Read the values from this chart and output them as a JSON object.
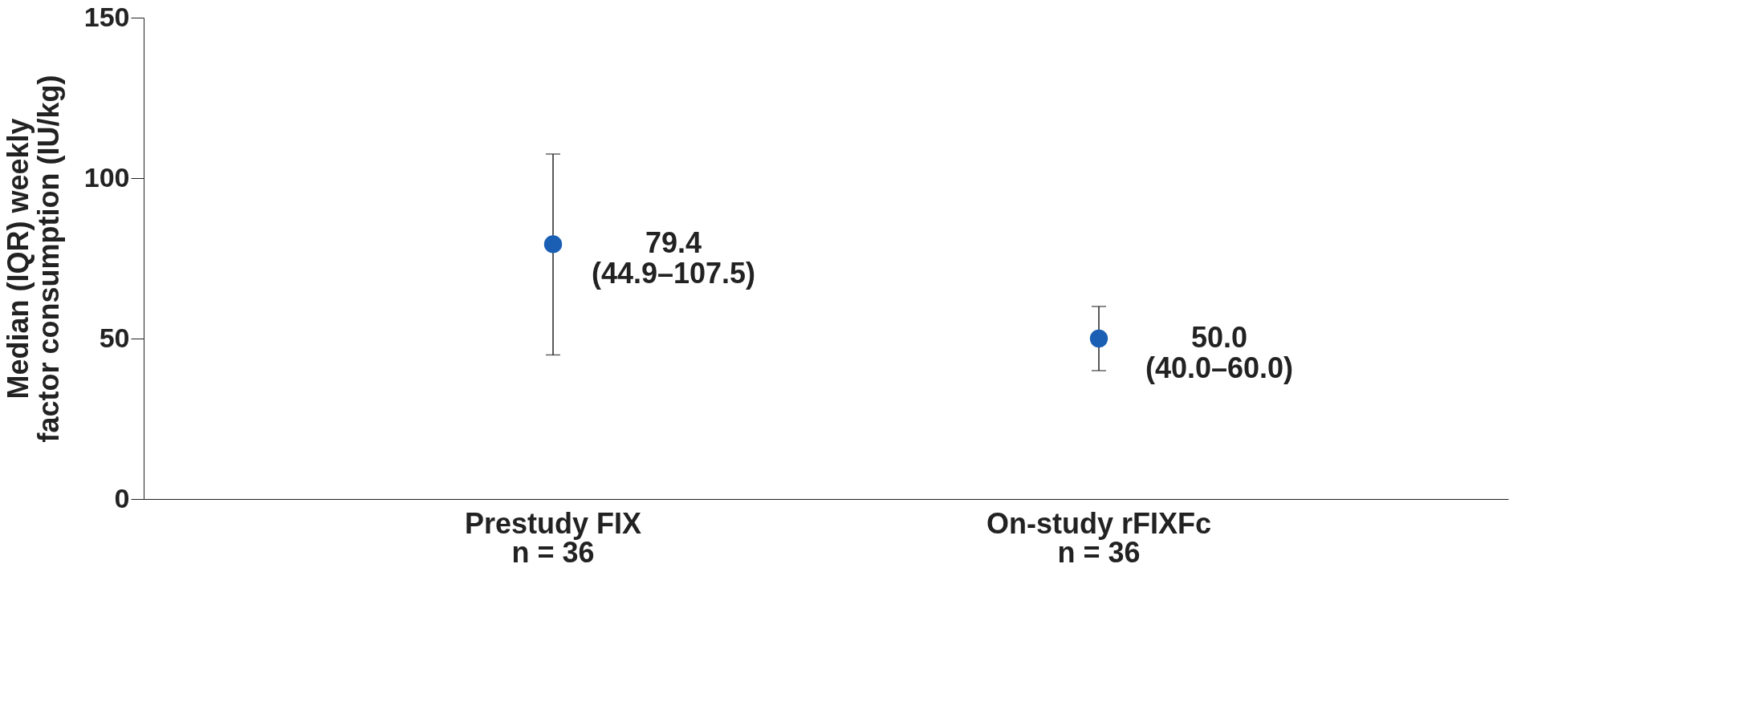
{
  "chart_data": {
    "type": "scatter",
    "ylabel": "Median (IQR) weekly\nfactor consumption (IU/kg)",
    "categories": [
      "Prestudy FIX\nn = 36",
      "On-study rFIXFc\nn = 36"
    ],
    "series": [
      {
        "color": "#1a5fb4",
        "values": [
          79.4,
          50.0
        ],
        "errors": [
          [
            44.9,
            107.5
          ],
          [
            40.0,
            60.0
          ]
        ],
        "value_labels": [
          "79.4\n(44.9–107.5)",
          "50.0\n(40.0–60.0)"
        ]
      }
    ],
    "ylim": [
      0,
      150
    ],
    "yticks": [
      0,
      50,
      100,
      150
    ],
    "grid": false,
    "marker": "circle"
  }
}
